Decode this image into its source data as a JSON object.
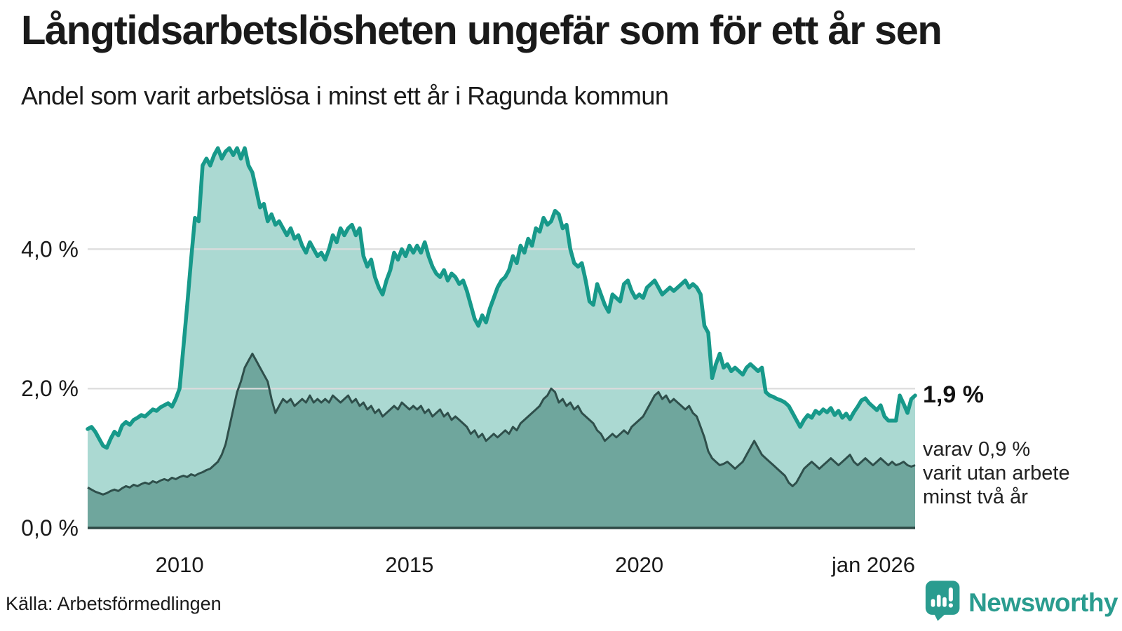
{
  "header": {
    "title": "Långtidsarbetslösheten ungefär som för ett år sen",
    "subtitle": "Andel som varit arbetslösa i minst ett år i Ragunda kommun"
  },
  "annotations": {
    "latest_value": "1,9 %",
    "note_line1": "varav 0,9 %",
    "note_line2": "varit utan arbete",
    "note_line3": "minst två år"
  },
  "footer": {
    "source": "Källa: Arbetsförmedlingen",
    "brand": "Newsworthy"
  },
  "colors": {
    "line_one_year": "#17998a",
    "fill_one_year": "#abd9d2",
    "line_two_year": "#2f4f4b",
    "fill_two_year": "#6fa69d",
    "grid": "#dcdcdc",
    "axis": "#2d4845",
    "text": "#1a1a1a",
    "brand_teal": "#2a9c8f"
  },
  "chart_data": {
    "type": "area",
    "title": "Långtidsarbetslösheten ungefär som för ett år sen",
    "subtitle": "Andel som varit arbetslösa i minst ett år i Ragunda kommun",
    "unit": "%",
    "x_range": [
      2008.0,
      2026.0
    ],
    "ylim": [
      0,
      5.66
    ],
    "grid": "horizontal",
    "legend": "none",
    "y_ticks": [
      {
        "v": 0,
        "label": "0,0 %"
      },
      {
        "v": 2,
        "label": "2,0 %"
      },
      {
        "v": 4,
        "label": "4,0 %"
      }
    ],
    "x_ticks": [
      {
        "x": 2010,
        "label": "2010",
        "anchor": "middle"
      },
      {
        "x": 2015,
        "label": "2015",
        "anchor": "middle"
      },
      {
        "x": 2020,
        "label": "2020",
        "anchor": "middle"
      },
      {
        "x": 2026.0,
        "label": "jan 2026",
        "anchor": "end"
      }
    ],
    "series": [
      {
        "name": "Arbetslösa minst ett år",
        "color": "#17998a",
        "fill": "#abd9d2",
        "latest_label": "1,9 %",
        "frequency": "monthly, jan 2008 - jan 2026",
        "values": [
          1.42,
          1.45,
          1.38,
          1.28,
          1.18,
          1.15,
          1.28,
          1.38,
          1.33,
          1.47,
          1.52,
          1.48,
          1.55,
          1.58,
          1.62,
          1.6,
          1.65,
          1.7,
          1.68,
          1.73,
          1.76,
          1.79,
          1.74,
          1.85,
          2.0,
          2.6,
          3.2,
          3.85,
          4.45,
          4.4,
          5.2,
          5.3,
          5.2,
          5.35,
          5.45,
          5.3,
          5.4,
          5.45,
          5.35,
          5.45,
          5.3,
          5.45,
          5.2,
          5.1,
          4.85,
          4.6,
          4.65,
          4.4,
          4.5,
          4.35,
          4.4,
          4.3,
          4.2,
          4.3,
          4.15,
          4.2,
          4.05,
          3.95,
          4.1,
          4.0,
          3.9,
          3.95,
          3.85,
          4.0,
          4.2,
          4.1,
          4.3,
          4.2,
          4.3,
          4.35,
          4.2,
          4.3,
          3.9,
          3.75,
          3.85,
          3.6,
          3.45,
          3.35,
          3.55,
          3.7,
          3.95,
          3.85,
          4.0,
          3.9,
          4.05,
          3.95,
          4.05,
          3.95,
          4.1,
          3.9,
          3.75,
          3.65,
          3.6,
          3.7,
          3.55,
          3.65,
          3.6,
          3.5,
          3.55,
          3.4,
          3.2,
          3.0,
          2.9,
          3.05,
          2.95,
          3.15,
          3.3,
          3.45,
          3.55,
          3.6,
          3.7,
          3.9,
          3.8,
          4.05,
          3.95,
          4.15,
          4.05,
          4.3,
          4.25,
          4.45,
          4.35,
          4.4,
          4.55,
          4.5,
          4.3,
          4.35,
          4.0,
          3.8,
          3.75,
          3.8,
          3.55,
          3.25,
          3.2,
          3.5,
          3.35,
          3.2,
          3.1,
          3.35,
          3.3,
          3.25,
          3.5,
          3.55,
          3.4,
          3.3,
          3.35,
          3.3,
          3.45,
          3.5,
          3.55,
          3.45,
          3.35,
          3.4,
          3.45,
          3.4,
          3.45,
          3.5,
          3.55,
          3.45,
          3.5,
          3.45,
          3.35,
          2.9,
          2.8,
          2.15,
          2.35,
          2.5,
          2.3,
          2.35,
          2.25,
          2.3,
          2.25,
          2.2,
          2.3,
          2.35,
          2.3,
          2.25,
          2.3,
          1.95,
          1.9,
          1.88,
          1.85,
          1.83,
          1.8,
          1.75,
          1.65,
          1.55,
          1.45,
          1.55,
          1.62,
          1.58,
          1.68,
          1.64,
          1.7,
          1.66,
          1.72,
          1.62,
          1.68,
          1.58,
          1.64,
          1.56,
          1.66,
          1.74,
          1.83,
          1.86,
          1.79,
          1.74,
          1.69,
          1.76,
          1.6,
          1.54,
          1.54,
          1.54,
          1.9,
          1.78,
          1.65,
          1.85,
          1.9
        ]
      },
      {
        "name": "varav arbetslösa minst två år",
        "color": "#2f4f4b",
        "fill": "#6fa69d",
        "latest_label": "0,9 %",
        "frequency": "monthly, jan 2008 - jan 2026",
        "values": [
          0.58,
          0.55,
          0.52,
          0.5,
          0.48,
          0.5,
          0.53,
          0.55,
          0.53,
          0.57,
          0.6,
          0.58,
          0.62,
          0.6,
          0.63,
          0.65,
          0.63,
          0.67,
          0.65,
          0.68,
          0.7,
          0.68,
          0.72,
          0.7,
          0.73,
          0.75,
          0.73,
          0.77,
          0.75,
          0.78,
          0.8,
          0.83,
          0.85,
          0.9,
          0.95,
          1.05,
          1.2,
          1.45,
          1.7,
          1.95,
          2.1,
          2.3,
          2.4,
          2.5,
          2.4,
          2.3,
          2.2,
          2.1,
          1.85,
          1.65,
          1.75,
          1.85,
          1.8,
          1.85,
          1.75,
          1.8,
          1.85,
          1.8,
          1.9,
          1.8,
          1.85,
          1.8,
          1.85,
          1.8,
          1.9,
          1.85,
          1.8,
          1.85,
          1.9,
          1.8,
          1.85,
          1.75,
          1.8,
          1.7,
          1.75,
          1.65,
          1.7,
          1.6,
          1.65,
          1.7,
          1.75,
          1.7,
          1.8,
          1.75,
          1.7,
          1.75,
          1.7,
          1.75,
          1.65,
          1.7,
          1.6,
          1.65,
          1.7,
          1.6,
          1.65,
          1.55,
          1.6,
          1.55,
          1.5,
          1.45,
          1.35,
          1.4,
          1.3,
          1.35,
          1.25,
          1.3,
          1.35,
          1.3,
          1.35,
          1.4,
          1.35,
          1.45,
          1.4,
          1.5,
          1.55,
          1.6,
          1.65,
          1.7,
          1.75,
          1.85,
          1.9,
          2.0,
          1.95,
          1.8,
          1.85,
          1.75,
          1.8,
          1.7,
          1.75,
          1.65,
          1.6,
          1.55,
          1.5,
          1.4,
          1.35,
          1.25,
          1.3,
          1.35,
          1.3,
          1.35,
          1.4,
          1.35,
          1.45,
          1.5,
          1.55,
          1.6,
          1.7,
          1.8,
          1.9,
          1.95,
          1.85,
          1.9,
          1.8,
          1.85,
          1.8,
          1.75,
          1.7,
          1.75,
          1.65,
          1.6,
          1.45,
          1.3,
          1.1,
          1.0,
          0.95,
          0.9,
          0.92,
          0.95,
          0.9,
          0.85,
          0.9,
          0.95,
          1.05,
          1.15,
          1.25,
          1.15,
          1.05,
          1.0,
          0.95,
          0.9,
          0.85,
          0.8,
          0.75,
          0.65,
          0.6,
          0.65,
          0.75,
          0.85,
          0.9,
          0.95,
          0.9,
          0.85,
          0.9,
          0.95,
          1.0,
          0.95,
          0.9,
          0.95,
          1.0,
          1.05,
          0.95,
          0.9,
          0.95,
          1.0,
          0.95,
          0.9,
          0.95,
          1.0,
          0.95,
          0.9,
          0.95,
          0.9,
          0.92,
          0.95,
          0.9,
          0.88,
          0.9
        ]
      }
    ]
  }
}
